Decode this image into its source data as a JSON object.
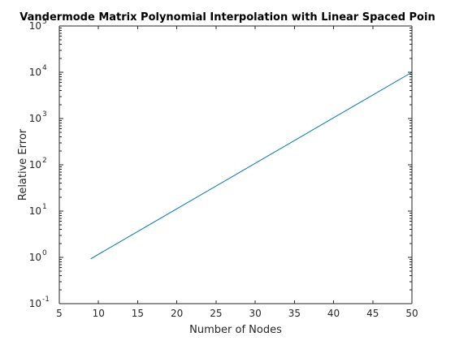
{
  "chart_data": {
    "type": "line",
    "title": "Vandermode Matrix Polynomial Interpolation with Linear Spaced Poin",
    "xlabel": "Number of Nodes",
    "ylabel": "Relative Error",
    "xlim": [
      5,
      50
    ],
    "ylim": [
      0.1,
      100000
    ],
    "yscale": "log",
    "grid": false,
    "x_ticks": [
      "5",
      "10",
      "15",
      "20",
      "25",
      "30",
      "35",
      "40",
      "45",
      "50"
    ],
    "y_ticks": [
      {
        "base": "10",
        "exp": "-1"
      },
      {
        "base": "10",
        "exp": "0"
      },
      {
        "base": "10",
        "exp": "1"
      },
      {
        "base": "10",
        "exp": "2"
      },
      {
        "base": "10",
        "exp": "3"
      },
      {
        "base": "10",
        "exp": "4"
      },
      {
        "base": "10",
        "exp": "5"
      }
    ],
    "series": [
      {
        "color": "#0072bd",
        "x": [
          9,
          50
        ],
        "y": [
          0.93,
          10000
        ]
      }
    ]
  }
}
